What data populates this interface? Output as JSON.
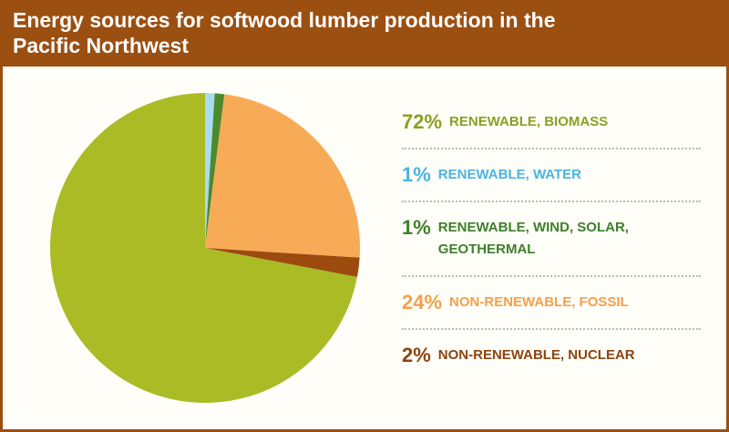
{
  "chart_data": {
    "type": "pie",
    "title": "Energy sources for softwood lumber production in the Pacific Northwest",
    "categories": [
      "RENEWABLE, BIOMASS",
      "RENEWABLE, WATER",
      "RENEWABLE, WIND, SOLAR, GEOTHERMAL",
      "NON-RENEWABLE, FOSSIL",
      "NON-RENEWABLE, NUCLEAR"
    ],
    "values": [
      72,
      1,
      1,
      24,
      2
    ],
    "value_labels": [
      "72%",
      "1%",
      "1%",
      "24%",
      "2%"
    ],
    "colors": [
      "#aabb26",
      "#a8dcef",
      "#4c8a2c",
      "#f8ab57",
      "#9c4a0e"
    ],
    "label_colors": [
      "#8aa023",
      "#49b4e0",
      "#3e7f2c",
      "#f3a04b",
      "#8e4410"
    ]
  }
}
